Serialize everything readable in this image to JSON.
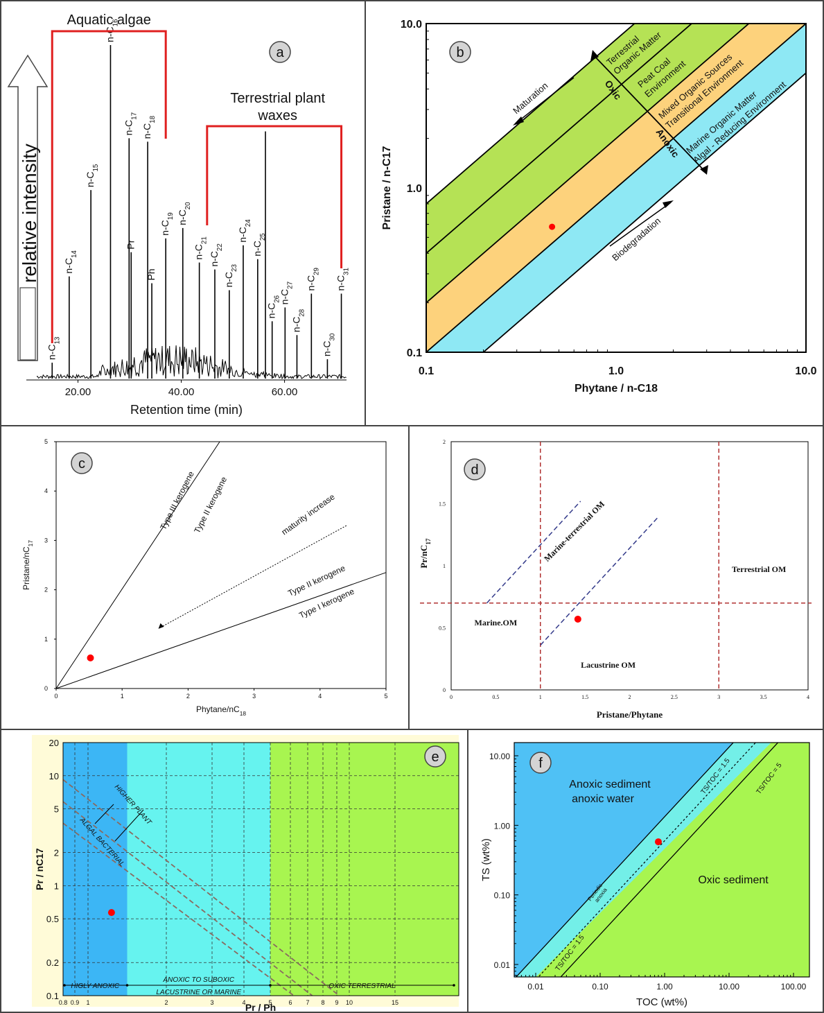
{
  "chart_data": [
    {
      "panel": "a",
      "type": "line",
      "badge": "a",
      "xlabel": "Retention time (min)",
      "ylabel": "relative intensity",
      "xticks": [
        20,
        40,
        60
      ],
      "xtick_labels": [
        "20.00",
        "40.00",
        "60.00"
      ],
      "xlim": [
        10,
        72
      ],
      "ylim": [
        0,
        1
      ],
      "groups": [
        {
          "label": "Aquatic algae",
          "x_range": [
            15,
            37
          ]
        },
        {
          "label_lines": [
            "Terrestrial plant",
            "waxes"
          ],
          "x_range": [
            45,
            71
          ]
        }
      ],
      "peaks": [
        {
          "label": "n-C",
          "sub": "13",
          "x": 15.0,
          "y": 0.05
        },
        {
          "label": "n-C",
          "sub": "14",
          "x": 18.3,
          "y": 0.3
        },
        {
          "label": "n-C",
          "sub": "15",
          "x": 22.5,
          "y": 0.55
        },
        {
          "label": "n-C",
          "sub": "16",
          "x": 26.3,
          "y": 0.97
        },
        {
          "label": "n-C",
          "sub": "17",
          "x": 29.9,
          "y": 0.7
        },
        {
          "label": "Pr",
          "sub": "",
          "x": 30.3,
          "y": 0.37
        },
        {
          "label": "n-C",
          "sub": "18",
          "x": 33.5,
          "y": 0.69
        },
        {
          "label": "Ph",
          "sub": "",
          "x": 34.3,
          "y": 0.28
        },
        {
          "label": "n-C",
          "sub": "19",
          "x": 37.0,
          "y": 0.41
        },
        {
          "label": "n-C",
          "sub": "20",
          "x": 40.3,
          "y": 0.44
        },
        {
          "label": "n-C",
          "sub": "21",
          "x": 43.5,
          "y": 0.34
        },
        {
          "label": "n-C",
          "sub": "22",
          "x": 46.5,
          "y": 0.32
        },
        {
          "label": "n-C",
          "sub": "23",
          "x": 49.3,
          "y": 0.26
        },
        {
          "label": "n-C",
          "sub": "24",
          "x": 52.0,
          "y": 0.39
        },
        {
          "label": "n-C",
          "sub": "25",
          "x": 54.8,
          "y": 0.35
        },
        {
          "label": "",
          "sub": "",
          "x": 56.3,
          "y": 0.72
        },
        {
          "label": "n-C",
          "sub": "26",
          "x": 57.6,
          "y": 0.17
        },
        {
          "label": "n-C",
          "sub": "27",
          "x": 60.1,
          "y": 0.21
        },
        {
          "label": "n-C",
          "sub": "28",
          "x": 62.4,
          "y": 0.13
        },
        {
          "label": "n-C",
          "sub": "29",
          "x": 65.2,
          "y": 0.25
        },
        {
          "label": "n-C",
          "sub": "30",
          "x": 68.3,
          "y": 0.06
        },
        {
          "label": "n-C",
          "sub": "31",
          "x": 71.0,
          "y": 0.25
        }
      ]
    },
    {
      "panel": "b",
      "type": "scatter",
      "badge": "b",
      "xscale": "log",
      "yscale": "log",
      "xlabel": "Phytane / n-C18",
      "ylabel": "Pristane / n-C17",
      "xlim": [
        0.1,
        10
      ],
      "ylim": [
        0.1,
        10
      ],
      "xtick_labels": [
        "0.1",
        "1.0",
        "10.0"
      ],
      "ytick_labels": [
        "0.1",
        "1.0",
        "10.0"
      ],
      "region_colors": {
        "oxic": "#b5e255",
        "mixed": "#fdd27c",
        "anoxic": "#8ee8f4"
      },
      "region_labels": [
        [
          "Terrestrial",
          "Organic Matter"
        ],
        [
          "Peat Coal",
          "Environment"
        ],
        [
          "Mixed Organic Sources",
          "Transitional Environment"
        ],
        [
          "Marine Organic Matter",
          "Algal - Reducing Environment"
        ]
      ],
      "annotations": [
        "Maturation",
        "Oxic",
        "Anoxic",
        "Biodegradation"
      ],
      "points": [
        {
          "x": 0.46,
          "y": 0.58
        }
      ],
      "point_color": "#ff0000"
    },
    {
      "panel": "c",
      "type": "scatter",
      "badge": "c",
      "xlabel": "Phytane/nC",
      "xlabel_sub": "18",
      "ylabel": "Pristane/nC",
      "ylabel_sub": "17",
      "xlim": [
        0,
        5
      ],
      "ylim": [
        0,
        5
      ],
      "xticks": [
        0,
        1,
        2,
        3,
        4,
        5
      ],
      "yticks": [
        0,
        1,
        2,
        3,
        4,
        5
      ],
      "line_labels": [
        "Type III kerogene",
        "Type II kerogene",
        "maturity increase",
        "Type II kerogene",
        "Type I kerogene"
      ],
      "points": [
        {
          "x": 0.52,
          "y": 0.62
        }
      ]
    },
    {
      "panel": "d",
      "type": "scatter",
      "badge": "d",
      "xlabel": "Pristane/Phytane",
      "ylabel": "Pr/nC",
      "ylabel_sub": "17",
      "xlim": [
        0,
        4
      ],
      "ylim": [
        0,
        2
      ],
      "xticks": [
        "0",
        "0.5",
        "1",
        "1.5",
        "2",
        "2.5",
        "3",
        "3.5",
        "4"
      ],
      "yticks": [
        "0",
        "0.5",
        "1",
        "1.5",
        "2"
      ],
      "region_labels": [
        "Marine-terrestrial OM",
        "Terrestrial OM",
        "Marine.OM",
        "Lacustrine OM"
      ],
      "points": [
        {
          "x": 1.42,
          "y": 0.57
        }
      ]
    },
    {
      "panel": "e",
      "type": "scatter",
      "badge": "e",
      "xlabel": "Pr / Ph",
      "ylabel": "Pr / nC17",
      "xtick_labels": [
        "0.8",
        "0.9",
        "1",
        "2",
        "3",
        "4",
        "5",
        "6",
        "7",
        "8",
        "9",
        "10",
        "15"
      ],
      "ytick_labels": [
        "0.1",
        "0.2",
        "0.5",
        "1",
        "2",
        "5",
        "10",
        "20"
      ],
      "region_colors": {
        "anoxic": "#3cb6f5",
        "suboxic": "#66f3ef",
        "oxic": "#a8f550"
      },
      "zone_labels": [
        "HIGLY ANOXIC",
        "ANOXIC TO SUBOXIC",
        "LACUSTRINE OR MARINE",
        "OXIC TERRESTRIAL"
      ],
      "line_labels": [
        "HIGHER PLANT",
        "ALGAL BACTERIAL"
      ],
      "points": [
        {
          "x": 1.3,
          "y": 0.57
        }
      ]
    },
    {
      "panel": "f",
      "type": "scatter",
      "badge": "f",
      "xscale": "log",
      "yscale": "log",
      "xlabel": "TOC (wt%)",
      "ylabel": "TS (wt%)",
      "xlim": [
        0.005,
        200
      ],
      "ylim": [
        0.005,
        15
      ],
      "xtick_labels": [
        "0.01",
        "0.10",
        "1.00",
        "10.00",
        "100.00"
      ],
      "ytick_labels": [
        "0.01",
        "0.10",
        "1.00",
        "10.00"
      ],
      "region_colors": {
        "anoxic": "#4fc1f5",
        "periodic": "#73efe8",
        "oxic": "#a8f550"
      },
      "region_labels": [
        "Anoxic sediment",
        "anoxic water",
        "Oxic sediment",
        "Periodic",
        "anoxia"
      ],
      "line_labels": [
        "TS/TOC = 1.5",
        "TS/TOC = 1.5",
        "TS/TOC = 5"
      ],
      "points": [
        {
          "x": 0.8,
          "y": 0.58
        }
      ]
    }
  ]
}
